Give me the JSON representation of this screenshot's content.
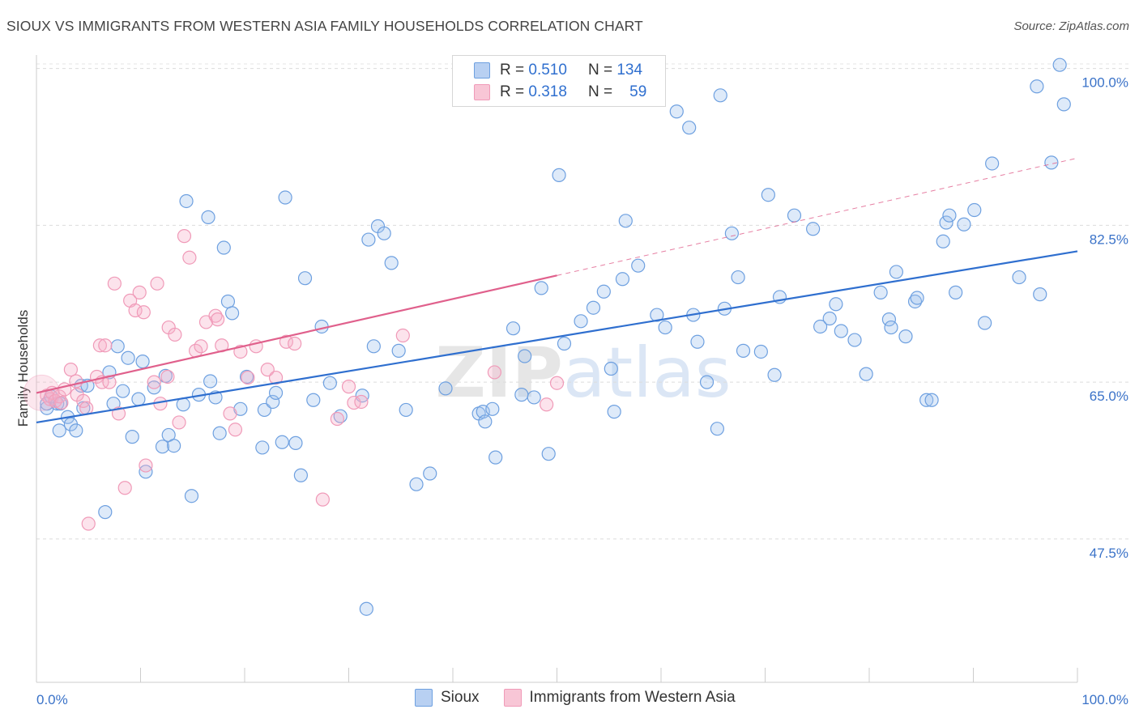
{
  "title": "SIOUX VS IMMIGRANTS FROM WESTERN ASIA FAMILY HOUSEHOLDS CORRELATION CHART",
  "source": "Source: ZipAtlas.com",
  "watermark": "ZIPatlas",
  "legend": {
    "rows": [
      {
        "r_label": "R =",
        "r_value": "0.510",
        "n_label": "N =",
        "n_value": "134"
      },
      {
        "r_label": "R =",
        "r_value": "0.318",
        "n_label": "N =",
        "n_value": "59"
      }
    ]
  },
  "chart_data": {
    "type": "scatter",
    "ylabel": "Family Households",
    "xlabel": "",
    "x_tick_labels": [
      "0.0%",
      "100.0%"
    ],
    "y_tick_labels": [
      "100.0%",
      "82.5%",
      "65.0%",
      "47.5%"
    ],
    "y_ticks": [
      100.0,
      82.5,
      65.0,
      47.5
    ],
    "xlim": [
      0,
      100
    ],
    "ylim": [
      31.5,
      101.5
    ],
    "grid": true,
    "legend_position": "top-center",
    "colors": {
      "sioux": "#6ea0e0",
      "sioux_line": "#2f6fcf",
      "western_asia": "#f09ab8",
      "western_asia_line": "#e0608c"
    },
    "series": [
      {
        "name": "Sioux",
        "trend": {
          "x0": 0,
          "y0": 60.5,
          "x1": 100,
          "y1": 79.6
        },
        "points": [
          [
            1,
            62.1
          ],
          [
            1,
            62.6
          ],
          [
            1.4,
            63.4
          ],
          [
            2,
            62.6
          ],
          [
            2.3,
            62.6
          ],
          [
            2.2,
            59.6
          ],
          [
            3,
            61.1
          ],
          [
            3.3,
            60.3
          ],
          [
            3.8,
            59.6
          ],
          [
            4.5,
            62.1
          ],
          [
            4.3,
            64.6
          ],
          [
            4.9,
            64.6
          ],
          [
            6.6,
            50.5
          ],
          [
            7,
            66.1
          ],
          [
            7.4,
            62.6
          ],
          [
            7.8,
            69.0
          ],
          [
            8.3,
            64.0
          ],
          [
            8.8,
            67.7
          ],
          [
            9.2,
            58.9
          ],
          [
            9.8,
            63.1
          ],
          [
            10.2,
            67.3
          ],
          [
            10.5,
            55.0
          ],
          [
            11.3,
            64.4
          ],
          [
            12.1,
            57.8
          ],
          [
            12.4,
            65.7
          ],
          [
            12.7,
            59.1
          ],
          [
            13.2,
            57.9
          ],
          [
            14.1,
            62.5
          ],
          [
            14.4,
            85.2
          ],
          [
            14.9,
            52.3
          ],
          [
            15.6,
            63.6
          ],
          [
            16.5,
            83.4
          ],
          [
            16.7,
            65.1
          ],
          [
            17.6,
            59.3
          ],
          [
            17.2,
            63.3
          ],
          [
            18,
            80.0
          ],
          [
            18.4,
            74.0
          ],
          [
            18.8,
            72.7
          ],
          [
            19.6,
            62.0
          ],
          [
            20.2,
            65.6
          ],
          [
            21.7,
            57.7
          ],
          [
            21.9,
            61.9
          ],
          [
            22.7,
            62.8
          ],
          [
            23,
            63.8
          ],
          [
            23.6,
            58.3
          ],
          [
            23.9,
            85.6
          ],
          [
            24.9,
            58.2
          ],
          [
            25.4,
            54.6
          ],
          [
            25.8,
            76.6
          ],
          [
            26.6,
            63.0
          ],
          [
            27.4,
            71.2
          ],
          [
            28.2,
            64.9
          ],
          [
            29.2,
            61.2
          ],
          [
            31.3,
            63.5
          ],
          [
            31.7,
            39.7
          ],
          [
            31.9,
            80.9
          ],
          [
            32.4,
            69.0
          ],
          [
            32.8,
            82.4
          ],
          [
            33.4,
            81.6
          ],
          [
            34.1,
            78.3
          ],
          [
            34.8,
            68.5
          ],
          [
            35.5,
            61.9
          ],
          [
            36.5,
            53.6
          ],
          [
            37.8,
            54.8
          ],
          [
            39.3,
            64.3
          ],
          [
            42.5,
            61.5
          ],
          [
            42.9,
            61.7
          ],
          [
            43.1,
            60.6
          ],
          [
            43.8,
            62.0
          ],
          [
            44.1,
            56.6
          ],
          [
            45.8,
            71.0
          ],
          [
            46.6,
            63.6
          ],
          [
            46.9,
            67.9
          ],
          [
            47.8,
            63.3
          ],
          [
            48.5,
            75.5
          ],
          [
            49.2,
            57.0
          ],
          [
            50.2,
            88.1
          ],
          [
            50.7,
            69.3
          ],
          [
            52.3,
            71.8
          ],
          [
            53.5,
            73.3
          ],
          [
            54.5,
            75.1
          ],
          [
            55.2,
            66.5
          ],
          [
            55.5,
            61.7
          ],
          [
            56.3,
            76.5
          ],
          [
            56.6,
            83.0
          ],
          [
            57.8,
            78.0
          ],
          [
            59.6,
            72.5
          ],
          [
            60.4,
            71.1
          ],
          [
            61.5,
            95.2
          ],
          [
            63.1,
            72.5
          ],
          [
            63.5,
            69.5
          ],
          [
            64.4,
            65.0
          ],
          [
            65.4,
            59.8
          ],
          [
            65.7,
            97.0
          ],
          [
            66.1,
            73.2
          ],
          [
            66.8,
            81.6
          ],
          [
            67.4,
            76.7
          ],
          [
            67.9,
            68.5
          ],
          [
            69.6,
            68.4
          ],
          [
            70.3,
            85.9
          ],
          [
            70.9,
            65.8
          ],
          [
            71.4,
            74.5
          ],
          [
            72.8,
            83.6
          ],
          [
            74.6,
            82.1
          ],
          [
            75.3,
            71.2
          ],
          [
            76.2,
            72.1
          ],
          [
            76.8,
            73.7
          ],
          [
            77.3,
            70.7
          ],
          [
            78.6,
            69.7
          ],
          [
            79.7,
            65.9
          ],
          [
            81.1,
            75.0
          ],
          [
            81.9,
            72.0
          ],
          [
            82.1,
            71.1
          ],
          [
            82.6,
            77.3
          ],
          [
            83.5,
            70.1
          ],
          [
            84.4,
            74.0
          ],
          [
            84.6,
            74.4
          ],
          [
            85.5,
            63.0
          ],
          [
            86,
            63.0
          ],
          [
            87.1,
            80.7
          ],
          [
            87.4,
            82.8
          ],
          [
            87.7,
            83.6
          ],
          [
            88.3,
            75.0
          ],
          [
            89.1,
            82.6
          ],
          [
            90.1,
            84.2
          ],
          [
            91.1,
            71.6
          ],
          [
            91.8,
            89.4
          ],
          [
            94.4,
            76.7
          ],
          [
            96.4,
            74.8
          ],
          [
            97.5,
            89.5
          ],
          [
            98.3,
            100.4
          ],
          [
            98.7,
            96.0
          ],
          [
            96.1,
            98.0
          ],
          [
            62.7,
            93.4
          ]
        ]
      },
      {
        "name": "Immigrants from Western Asia",
        "trend": {
          "x0": 0,
          "y0": 63.8,
          "x1": 50,
          "y1": 76.9,
          "dash_x1": 100,
          "dash_y1": 90.0
        },
        "points": [
          [
            1,
            63.5
          ],
          [
            1.3,
            63.1
          ],
          [
            1.5,
            63.8
          ],
          [
            1.8,
            62.9
          ],
          [
            2.2,
            63.4
          ],
          [
            2.4,
            62.7
          ],
          [
            2.7,
            64.2
          ],
          [
            3.3,
            66.4
          ],
          [
            3.8,
            65.1
          ],
          [
            3.9,
            63.6
          ],
          [
            4.5,
            62.9
          ],
          [
            4.8,
            62.1
          ],
          [
            5,
            49.2
          ],
          [
            5.8,
            65.6
          ],
          [
            6.1,
            69.1
          ],
          [
            6.3,
            65.0
          ],
          [
            6.6,
            69.1
          ],
          [
            7,
            65.0
          ],
          [
            7.5,
            76.0
          ],
          [
            7.9,
            61.5
          ],
          [
            8.5,
            53.2
          ],
          [
            9,
            74.1
          ],
          [
            9.5,
            73.0
          ],
          [
            9.9,
            75.0
          ],
          [
            10.3,
            72.8
          ],
          [
            10.5,
            55.7
          ],
          [
            11.3,
            65.0
          ],
          [
            11.6,
            76.0
          ],
          [
            11.9,
            62.6
          ],
          [
            12.6,
            65.6
          ],
          [
            12.7,
            71.1
          ],
          [
            13.3,
            70.3
          ],
          [
            13.7,
            60.5
          ],
          [
            14.2,
            81.3
          ],
          [
            14.7,
            78.9
          ],
          [
            15.3,
            68.5
          ],
          [
            15.8,
            69.0
          ],
          [
            16.3,
            71.7
          ],
          [
            17.2,
            72.4
          ],
          [
            17.4,
            72.0
          ],
          [
            17.8,
            69.1
          ],
          [
            18.6,
            61.5
          ],
          [
            19.1,
            59.7
          ],
          [
            19.6,
            68.4
          ],
          [
            20.3,
            65.5
          ],
          [
            21.1,
            69.0
          ],
          [
            22.2,
            66.4
          ],
          [
            23,
            65.5
          ],
          [
            24,
            69.5
          ],
          [
            24.8,
            69.3
          ],
          [
            27.5,
            51.9
          ],
          [
            28.9,
            60.9
          ],
          [
            30.5,
            62.7
          ],
          [
            31.2,
            62.8
          ],
          [
            35.2,
            70.2
          ],
          [
            50,
            64.9
          ],
          [
            49,
            62.5
          ],
          [
            44,
            66.1
          ],
          [
            30,
            64.5
          ]
        ]
      }
    ]
  },
  "bottom_legend": [
    {
      "label": "Sioux"
    },
    {
      "label": "Immigrants from Western Asia"
    }
  ]
}
